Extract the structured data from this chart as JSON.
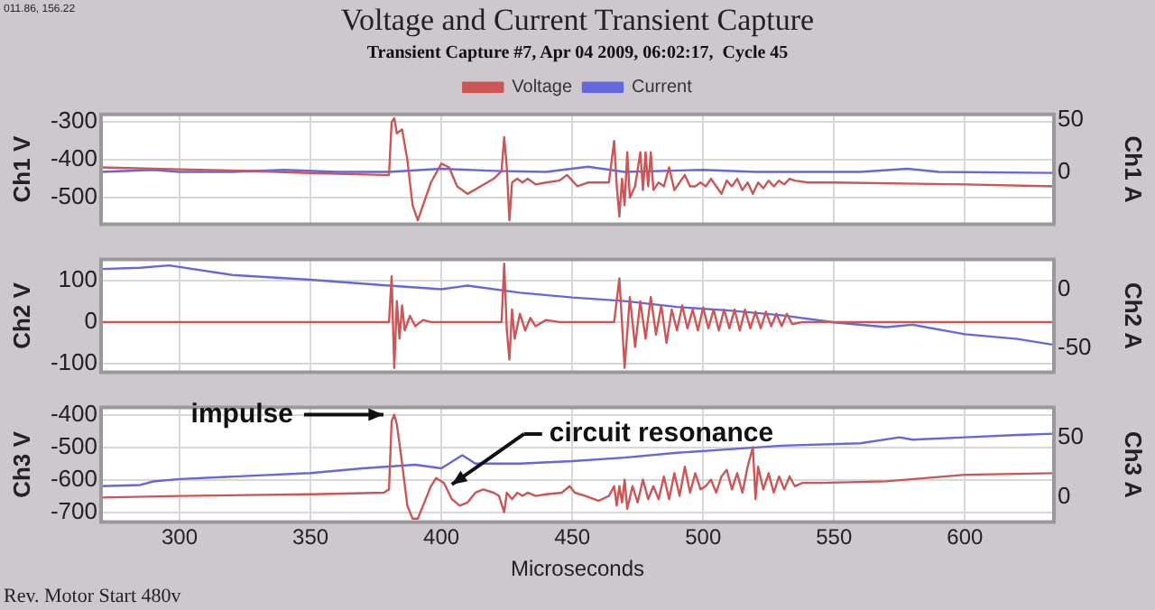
{
  "chart_data": [
    {
      "type": "line",
      "title": "Voltage and Current Transient Capture",
      "subtitle": "Transient Capture #7, Apr 04 2009, 06:02:17,  Cycle 45",
      "ylabel": "Ch1 V",
      "y2label": "Ch1 A",
      "annotations": [
        "011.86, 156.22"
      ],
      "legend": "top",
      "grid": true,
      "tick_labels": "y",
      "marker": "none",
      "xlim": [
        270,
        634
      ],
      "xticks": [
        300,
        350,
        400,
        450,
        500,
        550,
        600
      ],
      "ylim": [
        -570,
        -280
      ],
      "yticks": [
        -300,
        -400,
        -500
      ],
      "y2lim": [
        -50,
        55
      ],
      "y2ticks": [
        50,
        0
      ],
      "series": [
        {
          "name": "Voltage",
          "color": "#cc5555",
          "x": [
            270,
            300,
            330,
            350,
            378,
            380,
            381,
            382,
            383,
            385,
            387,
            389,
            391,
            393,
            396,
            400,
            403,
            406,
            410,
            415,
            420,
            423,
            424,
            425,
            426,
            427,
            429,
            431,
            433,
            436,
            440,
            445,
            448,
            452,
            456,
            460,
            464,
            466,
            467,
            468,
            469,
            470,
            471,
            472,
            474,
            476,
            477,
            478,
            479,
            480,
            481,
            483,
            485,
            487,
            489,
            491,
            493,
            495,
            497,
            499,
            501,
            503,
            505,
            507,
            509,
            511,
            513,
            515,
            517,
            519,
            521,
            523,
            525,
            527,
            529,
            531,
            533,
            535,
            540,
            550,
            600,
            634
          ],
          "values": [
            -420,
            -425,
            -430,
            -435,
            -440,
            -440,
            -300,
            -290,
            -330,
            -320,
            -400,
            -520,
            -560,
            -520,
            -460,
            -410,
            -420,
            -470,
            -490,
            -470,
            -450,
            -430,
            -340,
            -420,
            -560,
            -460,
            -450,
            -460,
            -450,
            -465,
            -460,
            -455,
            -440,
            -470,
            -460,
            -460,
            -460,
            -350,
            -470,
            -550,
            -450,
            -520,
            -380,
            -500,
            -470,
            -380,
            -480,
            -380,
            -470,
            -380,
            -480,
            -460,
            -470,
            -420,
            -480,
            -460,
            -440,
            -470,
            -470,
            -460,
            -470,
            -450,
            -470,
            -490,
            -455,
            -470,
            -450,
            -480,
            -460,
            -490,
            -460,
            -475,
            -455,
            -470,
            -455,
            -465,
            -450,
            -455,
            -460,
            -460,
            -465,
            -470
          ]
        },
        {
          "name": "Current",
          "color": "#6666dd",
          "axis": "y2",
          "x": [
            270,
            290,
            300,
            320,
            340,
            360,
            380,
            400,
            420,
            440,
            456,
            470,
            500,
            520,
            560,
            578,
            590,
            634
          ],
          "values": [
            0,
            2,
            0,
            0,
            2,
            0,
            0,
            3,
            1,
            0,
            5,
            0,
            2,
            0,
            0,
            3,
            0,
            -1
          ]
        }
      ]
    },
    {
      "type": "line",
      "ylabel": "Ch2 V",
      "y2label": "Ch2 A",
      "grid": true,
      "tick_labels": "y",
      "marker": "none",
      "xlim": [
        270,
        634
      ],
      "xticks": [
        300,
        350,
        400,
        450,
        500,
        550,
        600
      ],
      "ylim": [
        -120,
        150
      ],
      "yticks": [
        100,
        0,
        -100
      ],
      "y2lim": [
        -70,
        25
      ],
      "y2ticks": [
        0,
        -50
      ],
      "series": [
        {
          "color": "#cc5555",
          "x": [
            270,
            380,
            381,
            382,
            383,
            384,
            385,
            386,
            388,
            390,
            393,
            396,
            423,
            424,
            425,
            426,
            427,
            428,
            430,
            432,
            434,
            436,
            440,
            445,
            466,
            468,
            470,
            472,
            474,
            476,
            478,
            480,
            482,
            484,
            486,
            488,
            490,
            492,
            494,
            496,
            498,
            500,
            502,
            504,
            506,
            508,
            510,
            512,
            514,
            516,
            518,
            520,
            522,
            524,
            526,
            528,
            530,
            532,
            534,
            538,
            634
          ],
          "values": [
            0,
            0,
            110,
            -110,
            50,
            -40,
            40,
            -20,
            15,
            -10,
            5,
            0,
            0,
            140,
            -20,
            -90,
            30,
            -40,
            20,
            -20,
            10,
            -10,
            5,
            0,
            0,
            105,
            -110,
            60,
            -60,
            50,
            -40,
            60,
            -30,
            40,
            -50,
            30,
            -20,
            40,
            -15,
            30,
            -20,
            35,
            -15,
            30,
            -20,
            30,
            -15,
            30,
            -20,
            30,
            -15,
            25,
            -15,
            25,
            -10,
            20,
            -10,
            20,
            -5,
            0,
            0
          ]
        },
        {
          "color": "#6666dd",
          "axis": "y2",
          "x": [
            270,
            285,
            296,
            320,
            350,
            380,
            400,
            410,
            430,
            450,
            470,
            490,
            510,
            530,
            550,
            570,
            580,
            600,
            620,
            634
          ],
          "values": [
            17,
            18,
            20,
            12,
            8,
            3,
            0,
            3,
            -3,
            -7,
            -10,
            -15,
            -18,
            -22,
            -28,
            -32,
            -30,
            -38,
            -42,
            -47
          ]
        }
      ]
    },
    {
      "type": "line",
      "ylabel": "Ch3 V",
      "y2label": "Ch3 A",
      "xlabel": "Microseconds",
      "grid": true,
      "marker": "none",
      "xlim": [
        270,
        634
      ],
      "xticks": [
        300,
        350,
        400,
        450,
        500,
        550,
        600
      ],
      "ylim": [
        -730,
        -378
      ],
      "yticks": [
        -400,
        -500,
        -600,
        -700
      ],
      "y2lim": [
        -21,
        75
      ],
      "y2ticks": [
        50,
        0
      ],
      "annotations": [
        {
          "text": "impulse",
          "x": 382,
          "y": -400
        },
        {
          "text": "circuit resonance",
          "x": 404,
          "y": -615
        },
        "Rev. Motor Start 480v"
      ],
      "series": [
        {
          "color": "#cc5555",
          "x": [
            270,
            300,
            350,
            378,
            380,
            381,
            382,
            383,
            385,
            387,
            389,
            391,
            393,
            396,
            398,
            401,
            404,
            407,
            410,
            413,
            416,
            420,
            422,
            424,
            425,
            427,
            429,
            431,
            433,
            436,
            440,
            446,
            449,
            451,
            455,
            460,
            464,
            466,
            467,
            468,
            469,
            470,
            471,
            473,
            475,
            477,
            479,
            481,
            483,
            485,
            487,
            489,
            491,
            493,
            495,
            497,
            499,
            501,
            503,
            505,
            507,
            509,
            511,
            513,
            515,
            517,
            519,
            520,
            521,
            523,
            525,
            527,
            529,
            531,
            533,
            535,
            538,
            545,
            570,
            600,
            634
          ],
          "values": [
            -655,
            -650,
            -645,
            -640,
            -630,
            -420,
            -400,
            -430,
            -550,
            -680,
            -720,
            -720,
            -680,
            -620,
            -595,
            -610,
            -660,
            -680,
            -670,
            -640,
            -630,
            -640,
            -650,
            -700,
            -640,
            -660,
            -640,
            -650,
            -640,
            -650,
            -645,
            -640,
            -620,
            -640,
            -650,
            -665,
            -650,
            -620,
            -680,
            -620,
            -670,
            -600,
            -690,
            -620,
            -670,
            -600,
            -660,
            -620,
            -660,
            -590,
            -660,
            -580,
            -650,
            -560,
            -640,
            -580,
            -630,
            -620,
            -600,
            -640,
            -590,
            -570,
            -630,
            -580,
            -640,
            -560,
            -500,
            -660,
            -560,
            -630,
            -580,
            -640,
            -590,
            -630,
            -590,
            -620,
            -610,
            -610,
            -605,
            -585,
            -580
          ]
        },
        {
          "color": "#6666dd",
          "axis": "y2",
          "x": [
            270,
            285,
            290,
            300,
            330,
            350,
            370,
            390,
            400,
            408,
            413,
            430,
            450,
            470,
            490,
            510,
            530,
            560,
            575,
            580,
            600,
            620,
            634
          ],
          "values": [
            9,
            10,
            13,
            15,
            18,
            20,
            24,
            27,
            24,
            35,
            28,
            28,
            30,
            33,
            37,
            40,
            43,
            45,
            50,
            48,
            50,
            52,
            53
          ]
        }
      ]
    }
  ]
}
